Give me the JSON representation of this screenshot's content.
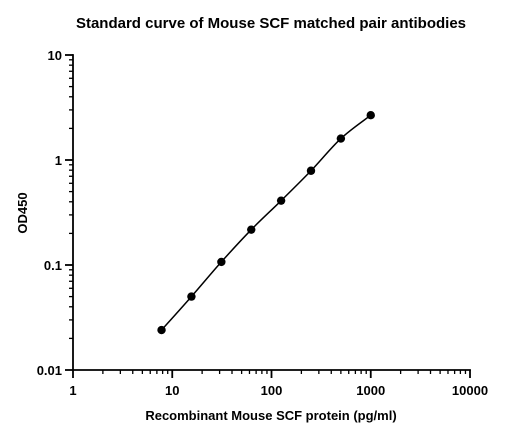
{
  "chart_data": {
    "type": "line",
    "title": "Standard curve of Mouse SCF matched pair antibodies",
    "xlabel": "Recombinant Mouse SCF protein (pg/ml)",
    "ylabel": "OD450",
    "x_scale": "log",
    "y_scale": "log",
    "xlim": [
      1,
      10000
    ],
    "ylim": [
      0.01,
      10
    ],
    "x_ticks": [
      "1",
      "10",
      "100",
      "1000",
      "10000"
    ],
    "y_ticks": [
      "0.01",
      "0.1",
      "1",
      "10"
    ],
    "grid": false,
    "markers": "filled circle",
    "line_style": "solid fitted curve",
    "series": [
      {
        "x": [
          7.8,
          15.6,
          31.25,
          62.5,
          125,
          250,
          500,
          1000
        ],
        "values": [
          0.024,
          0.05,
          0.107,
          0.217,
          0.41,
          0.79,
          1.6,
          2.67
        ]
      }
    ]
  }
}
